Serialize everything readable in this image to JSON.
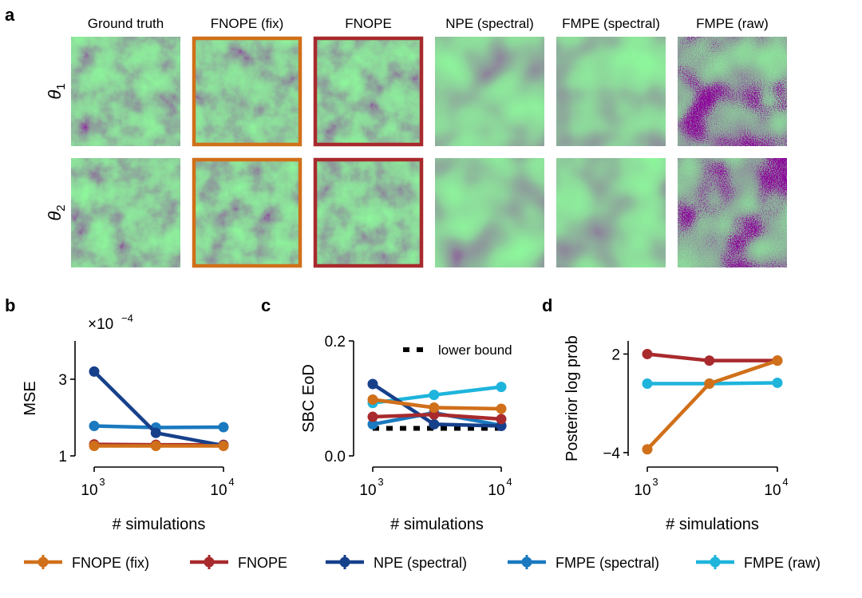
{
  "panel_a": {
    "letter": "a",
    "columns": [
      "Ground truth",
      "FNOPE (fix)",
      "FNOPE",
      "NPE (spectral)",
      "FMPE (spectral)",
      "FMPE (raw)"
    ],
    "rows": [
      "θ",
      "θ"
    ],
    "row_subscripts": [
      "1",
      "2"
    ]
  },
  "panel_letters": [
    "b",
    "c",
    "d"
  ],
  "colors": {
    "FNOPE (fix)": "#d0701a",
    "FNOPE": "#a82a2d",
    "NPE (spectral)": "#17408b",
    "FMPE (spectral)": "#1a79bf",
    "FMPE (raw)": "#1eb4dc"
  },
  "legend": [
    "FNOPE (fix)",
    "FNOPE",
    "NPE (spectral)",
    "FMPE (spectral)",
    "FMPE (raw)"
  ],
  "chart_data": [
    {
      "id": "b",
      "type": "line",
      "xlabel": "# simulations",
      "ylabel": "MSE",
      "multiplier_base": "×10",
      "multiplier_exp": "−4",
      "x": [
        1000,
        3000,
        10000
      ],
      "xscale": "log",
      "xlim": [
        1000,
        10000
      ],
      "ylim": [
        1,
        4
      ],
      "ytick_values": [
        1,
        3
      ],
      "ytick_labels": [
        "1",
        "3"
      ],
      "xtick_values": [
        1000,
        10000
      ],
      "xtick_bases": [
        "10",
        "10"
      ],
      "xtick_exps": [
        "3",
        "4"
      ],
      "series": [
        {
          "name": "FMPE (spectral)",
          "values": [
            1.78,
            1.74,
            1.75
          ]
        },
        {
          "name": "FNOPE",
          "values": [
            1.3,
            1.29,
            1.29
          ]
        },
        {
          "name": "NPE (spectral)",
          "values": [
            3.2,
            1.6,
            1.27
          ]
        },
        {
          "name": "FNOPE (fix)",
          "values": [
            1.26,
            1.26,
            1.26
          ]
        }
      ]
    },
    {
      "id": "c",
      "type": "line",
      "xlabel": "# simulations",
      "ylabel": "SBC EoD",
      "x": [
        1000,
        3000,
        10000
      ],
      "xscale": "log",
      "xlim": [
        1000,
        10000
      ],
      "ylim": [
        0,
        0.2
      ],
      "ytick_values": [
        0,
        0.2
      ],
      "ytick_labels": [
        "0.0",
        "0.2"
      ],
      "xtick_values": [
        1000,
        10000
      ],
      "xtick_bases": [
        "10",
        "10"
      ],
      "xtick_exps": [
        "3",
        "4"
      ],
      "lower_bound": {
        "label": "lower bound",
        "value": 0.048
      },
      "series": [
        {
          "name": "FMPE (spectral)",
          "values": [
            0.055,
            0.075,
            0.053
          ]
        },
        {
          "name": "FMPE (raw)",
          "values": [
            0.092,
            0.106,
            0.12
          ]
        },
        {
          "name": "NPE (spectral)",
          "values": [
            0.125,
            0.055,
            0.052
          ]
        },
        {
          "name": "FNOPE",
          "values": [
            0.068,
            0.072,
            0.064
          ]
        },
        {
          "name": "FNOPE (fix)",
          "values": [
            0.098,
            0.084,
            0.082
          ]
        }
      ]
    },
    {
      "id": "d",
      "type": "line",
      "xlabel": "# simulations",
      "ylabel": "Posterior log prob",
      "x": [
        1000,
        3000,
        10000
      ],
      "xscale": "log",
      "xlim": [
        1000,
        10000
      ],
      "ylim": [
        -4.2,
        2.8
      ],
      "ytick_values": [
        -4,
        2
      ],
      "ytick_labels": [
        "−4",
        "2"
      ],
      "xtick_values": [
        1000,
        10000
      ],
      "xtick_bases": [
        "10",
        "10"
      ],
      "xtick_exps": [
        "3",
        "4"
      ],
      "series": [
        {
          "name": "FMPE (raw)",
          "values": [
            0.2,
            0.2,
            0.25
          ]
        },
        {
          "name": "FNOPE",
          "values": [
            2.0,
            1.6,
            1.6
          ]
        },
        {
          "name": "FNOPE (fix)",
          "values": [
            -3.8,
            0.2,
            1.6
          ]
        }
      ]
    }
  ]
}
